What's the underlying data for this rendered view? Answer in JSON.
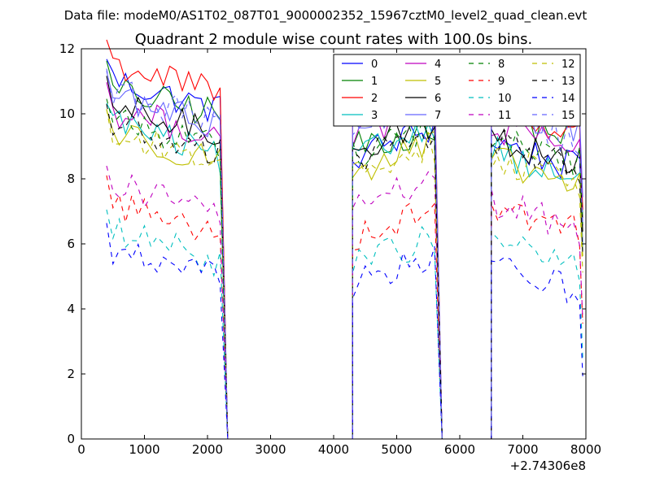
{
  "suptitle": "Data file: modeM0/AS1T02_087T01_9000002352_15967cztM0_level2_quad_clean.evt",
  "chart_data": {
    "type": "line",
    "title": "Quadrant 2 module wise count rates with 100.0s bins.",
    "xlabel": "",
    "ylabel": "",
    "x_offset_label": "+2.74306e8",
    "xlim": [
      0,
      8000
    ],
    "ylim": [
      0,
      12
    ],
    "xticks": [
      "0",
      "1000",
      "2000",
      "3000",
      "4000",
      "5000",
      "6000",
      "7000",
      "8000"
    ],
    "yticks": [
      "0",
      "2",
      "4",
      "6",
      "8",
      "10",
      "12"
    ],
    "legend_position": "top-right",
    "segments": [
      {
        "start": 400,
        "end": 2200
      },
      {
        "start": 4300,
        "end": 5600
      },
      {
        "start": 6500,
        "end": 7950
      }
    ],
    "gaps_value": 0,
    "series": [
      {
        "name": "0",
        "color": "#0000ff",
        "dash": "solid",
        "levels": [
          10.8,
          9.2,
          8.9
        ],
        "fall": 1.0
      },
      {
        "name": "1",
        "color": "#008000",
        "dash": "solid",
        "levels": [
          10.5,
          9.3,
          9.7
        ],
        "fall": 0.7
      },
      {
        "name": "2",
        "color": "#ff0000",
        "dash": "solid",
        "levels": [
          11.3,
          10.6,
          9.9
        ],
        "fall": 1.0
      },
      {
        "name": "3",
        "color": "#00bfbf",
        "dash": "solid",
        "levels": [
          9.5,
          9.2,
          8.6
        ],
        "fall": 1.3
      },
      {
        "name": "4",
        "color": "#bf00bf",
        "dash": "solid",
        "levels": [
          9.9,
          9.8,
          9.3
        ],
        "fall": 0.8
      },
      {
        "name": "5",
        "color": "#bfbf00",
        "dash": "solid",
        "levels": [
          9.2,
          8.7,
          8.3
        ],
        "fall": 0.9
      },
      {
        "name": "6",
        "color": "#000000",
        "dash": "solid",
        "levels": [
          10.0,
          9.4,
          9.0
        ],
        "fall": 0.9
      },
      {
        "name": "7",
        "color": "#6666ff",
        "dash": "solid",
        "levels": [
          10.3,
          10.2,
          10.0
        ],
        "fall": 0.9
      },
      {
        "name": "8",
        "color": "#008000",
        "dash": "dashed",
        "levels": [
          9.6,
          9.2,
          9.0
        ],
        "fall": 0.8
      },
      {
        "name": "9",
        "color": "#ff0000",
        "dash": "dashed",
        "levels": [
          7.0,
          6.7,
          7.0
        ],
        "fall": 0.9
      },
      {
        "name": "10",
        "color": "#00bfbf",
        "dash": "dashed",
        "levels": [
          6.1,
          5.8,
          5.9
        ],
        "fall": 0.9
      },
      {
        "name": "11",
        "color": "#bf00bf",
        "dash": "dashed",
        "levels": [
          7.6,
          7.6,
          7.0
        ],
        "fall": 0.9
      },
      {
        "name": "12",
        "color": "#bfbf00",
        "dash": "dashed",
        "levels": [
          9.1,
          8.7,
          8.4
        ],
        "fall": 0.8
      },
      {
        "name": "13",
        "color": "#000000",
        "dash": "dashed",
        "levels": [
          9.4,
          9.0,
          8.9
        ],
        "fall": 0.9
      },
      {
        "name": "14",
        "color": "#0000ff",
        "dash": "dashed",
        "levels": [
          5.5,
          5.2,
          5.1
        ],
        "fall": 0.8
      },
      {
        "name": "15",
        "color": "#6666ff",
        "dash": "dashed",
        "levels": [
          10.4,
          10.1,
          9.7
        ],
        "fall": 0.9
      }
    ]
  }
}
